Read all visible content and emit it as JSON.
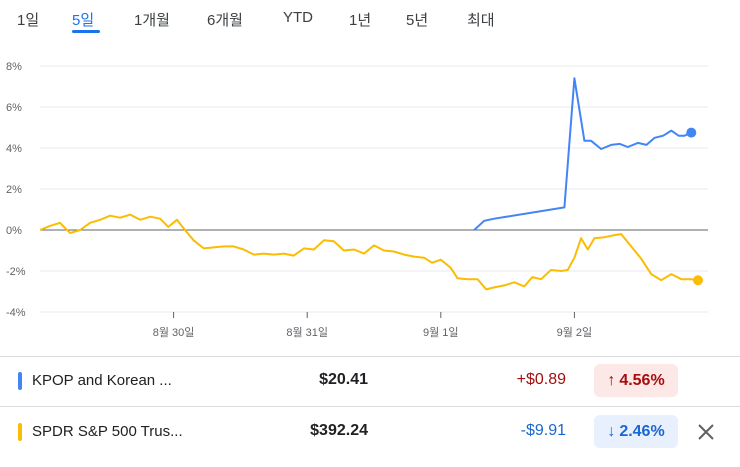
{
  "tabs": [
    {
      "label": "1일",
      "active": false
    },
    {
      "label": "5일",
      "active": true
    },
    {
      "label": "1개월",
      "active": false
    },
    {
      "label": "6개월",
      "active": false
    },
    {
      "label": "YTD",
      "active": false
    },
    {
      "label": "1년",
      "active": false
    },
    {
      "label": "5년",
      "active": false
    },
    {
      "label": "최대",
      "active": false
    }
  ],
  "chart_data": {
    "type": "line",
    "x_tick_labels": [
      "8월 30일",
      "8월 31일",
      "9월 1일",
      "9월 2일"
    ],
    "y_tick_labels": [
      "8%",
      "6%",
      "4%",
      "2%",
      "0%",
      "-2%",
      "-4%"
    ],
    "ylim": [
      -4,
      8
    ],
    "x_domain": [
      0,
      100
    ],
    "x_ticks": [
      20,
      40,
      60,
      80
    ],
    "series": [
      {
        "name": "KPOP and Korean ...",
        "color": "#4285f4",
        "points": [
          [
            65.0,
            0.0
          ],
          [
            66.5,
            0.45
          ],
          [
            68.0,
            0.55
          ],
          [
            78.5,
            1.1
          ],
          [
            80.0,
            7.4
          ],
          [
            81.5,
            4.35
          ],
          [
            82.5,
            4.35
          ],
          [
            84.0,
            3.95
          ],
          [
            85.5,
            4.15
          ],
          [
            86.8,
            4.2
          ],
          [
            88.0,
            4.05
          ],
          [
            89.5,
            4.25
          ],
          [
            90.8,
            4.15
          ],
          [
            92.0,
            4.5
          ],
          [
            93.3,
            4.6
          ],
          [
            94.5,
            4.85
          ],
          [
            95.6,
            4.6
          ],
          [
            96.5,
            4.6
          ],
          [
            97.5,
            4.75
          ]
        ]
      },
      {
        "name": "SPDR S&P 500 Trus...",
        "color": "#fbbc04",
        "points": [
          [
            0,
            0.0
          ],
          [
            1.5,
            0.2
          ],
          [
            3.0,
            0.35
          ],
          [
            4.5,
            -0.15
          ],
          [
            6.0,
            0.0
          ],
          [
            7.5,
            0.35
          ],
          [
            9.0,
            0.5
          ],
          [
            10.5,
            0.7
          ],
          [
            12.0,
            0.6
          ],
          [
            13.5,
            0.75
          ],
          [
            15.0,
            0.5
          ],
          [
            16.5,
            0.65
          ],
          [
            18.0,
            0.55
          ],
          [
            19.2,
            0.15
          ],
          [
            20.5,
            0.5
          ],
          [
            21.7,
            0.0
          ],
          [
            23.0,
            -0.5
          ],
          [
            24.5,
            -0.9
          ],
          [
            26.0,
            -0.85
          ],
          [
            27.5,
            -0.8
          ],
          [
            29.0,
            -0.8
          ],
          [
            30.5,
            -0.95
          ],
          [
            32.0,
            -1.2
          ],
          [
            33.5,
            -1.15
          ],
          [
            35.0,
            -1.2
          ],
          [
            36.5,
            -1.15
          ],
          [
            38.0,
            -1.25
          ],
          [
            39.5,
            -0.9
          ],
          [
            41.0,
            -0.95
          ],
          [
            42.5,
            -0.5
          ],
          [
            44.0,
            -0.55
          ],
          [
            45.5,
            -1.0
          ],
          [
            47.0,
            -0.95
          ],
          [
            48.5,
            -1.15
          ],
          [
            50.0,
            -0.75
          ],
          [
            51.5,
            -1.0
          ],
          [
            53.0,
            -1.05
          ],
          [
            54.5,
            -1.2
          ],
          [
            56.0,
            -1.3
          ],
          [
            57.5,
            -1.35
          ],
          [
            58.7,
            -1.6
          ],
          [
            60.0,
            -1.45
          ],
          [
            61.5,
            -1.85
          ],
          [
            62.5,
            -2.35
          ],
          [
            64.0,
            -2.4
          ],
          [
            65.5,
            -2.4
          ],
          [
            66.8,
            -2.9
          ],
          [
            68.0,
            -2.8
          ],
          [
            69.5,
            -2.7
          ],
          [
            71.0,
            -2.55
          ],
          [
            72.5,
            -2.75
          ],
          [
            73.7,
            -2.3
          ],
          [
            75.0,
            -2.4
          ],
          [
            76.5,
            -1.95
          ],
          [
            78.0,
            -2.0
          ],
          [
            79.0,
            -1.95
          ],
          [
            80.0,
            -1.35
          ],
          [
            81.0,
            -0.4
          ],
          [
            82.0,
            -0.95
          ],
          [
            83.0,
            -0.4
          ],
          [
            84.5,
            -0.35
          ],
          [
            86.0,
            -0.25
          ],
          [
            87.0,
            -0.2
          ],
          [
            88.5,
            -0.8
          ],
          [
            90.0,
            -1.4
          ],
          [
            91.5,
            -2.15
          ],
          [
            93.0,
            -2.45
          ],
          [
            94.5,
            -2.15
          ],
          [
            96.0,
            -2.4
          ],
          [
            97.5,
            -2.4
          ],
          [
            98.5,
            -2.45
          ]
        ]
      }
    ],
    "zero_line": 0
  },
  "rows": [
    {
      "name": "KPOP and Korean ...",
      "color": "#4285f4",
      "price": "$20.41",
      "change": "+$0.89",
      "change_color": "#a50e0e",
      "pct": "4.56%",
      "arrow": "↑",
      "pct_color": "#a50e0e",
      "pct_bg": "#fce8e6"
    },
    {
      "name": "SPDR S&P 500 Trus...",
      "color": "#fbbc04",
      "price": "$392.24",
      "change": "-$9.91",
      "change_color": "#1967d2",
      "pct": "2.46%",
      "arrow": "↓",
      "pct_color": "#1967d2",
      "pct_bg": "#e8f0fe"
    }
  ]
}
